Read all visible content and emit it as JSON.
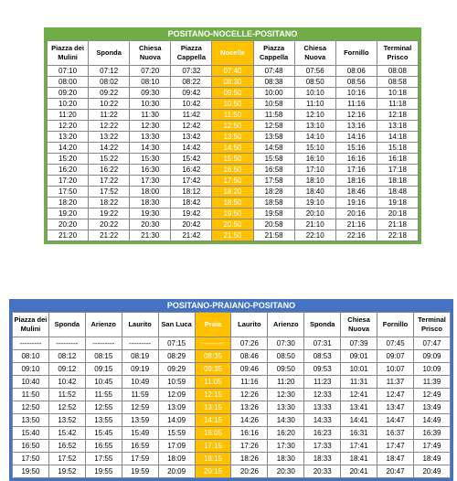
{
  "tables": [
    {
      "title": "POSITANO-NOCELLE-POSITANO",
      "headers": [
        "Piazza dei Mulini",
        "Sponda",
        "Chiesa Nuova",
        "Piazza Cappella",
        "Nocelle",
        "Piazza Cappella",
        "Chiesa Nuova",
        "Fornillo",
        "Terminal Prisco"
      ],
      "rows": [
        [
          "07:10",
          "07:12",
          "07:20",
          "07:32",
          "07:40",
          "07:48",
          "07:56",
          "08:06",
          "08:08"
        ],
        [
          "08:00",
          "08:02",
          "08:10",
          "08:22",
          "08:30",
          "08:38",
          "08:50",
          "08:56",
          "08:58"
        ],
        [
          "09:20",
          "09:22",
          "09:30",
          "09:42",
          "09:50",
          "10:00",
          "10:10",
          "10:16",
          "10:18"
        ],
        [
          "10:20",
          "10:22",
          "10:30",
          "10:42",
          "10:50",
          "10:58",
          "11:10",
          "11:16",
          "11:18"
        ],
        [
          "11:20",
          "11:22",
          "11:30",
          "11:42",
          "11:50",
          "11:58",
          "12:10",
          "12:16",
          "12:18"
        ],
        [
          "12:20",
          "12:22",
          "12:30",
          "12:42",
          "12:50",
          "12:58",
          "13:10",
          "13:16",
          "13:18"
        ],
        [
          "13:20",
          "13:22",
          "13:30",
          "13:42",
          "13:50",
          "13:58",
          "14:10",
          "14:16",
          "14:18"
        ],
        [
          "14:20",
          "14:22",
          "14:30",
          "14:42",
          "14:50",
          "14:58",
          "15:10",
          "15:16",
          "15:18"
        ],
        [
          "15:20",
          "15:22",
          "15:30",
          "15:42",
          "15:50",
          "15:58",
          "16:10",
          "16:16",
          "16:18"
        ],
        [
          "16:20",
          "16:22",
          "16:30",
          "16:42",
          "16:50",
          "16:58",
          "17:10",
          "17:16",
          "17:18"
        ],
        [
          "17:20",
          "17:22",
          "17:30",
          "17:42",
          "17:50",
          "17:58",
          "18:10",
          "18:16",
          "18:18"
        ],
        [
          "17:50",
          "17:52",
          "18:00",
          "18:12",
          "18:20",
          "18:28",
          "18:40",
          "18:46",
          "18:48"
        ],
        [
          "18:20",
          "18:22",
          "18:30",
          "18:42",
          "18:50",
          "18:58",
          "19:10",
          "19:16",
          "19:18"
        ],
        [
          "19:20",
          "19:22",
          "19:30",
          "19:42",
          "19:50",
          "19:58",
          "20:10",
          "20:16",
          "20:18"
        ],
        [
          "20:20",
          "20:22",
          "20:30",
          "20:42",
          "20:50",
          "20:58",
          "21:10",
          "21:16",
          "21:18"
        ],
        [
          "21:20",
          "21:22",
          "21:30",
          "21:42",
          "21:50",
          "21:58",
          "22:10",
          "22:16",
          "22:18"
        ]
      ]
    },
    {
      "title": "POSITANO-PRAIANO-POSITANO",
      "headers": [
        "Piazza dei Mulini",
        "Sponda",
        "Arienzo",
        "Laurito",
        "San Luca",
        "Praia",
        "Laurito",
        "Arienzo",
        "Sponda",
        "Chiesa Nuova",
        "Fornillo",
        "Terminal Prisco"
      ],
      "rows": [
        [
          "---------",
          "---------",
          "---------",
          "---------",
          "07:15",
          "---------",
          "07:26",
          "07:30",
          "07:31",
          "07:39",
          "07:45",
          "07:47"
        ],
        [
          "08:10",
          "08:12",
          "08:15",
          "08:19",
          "08:29",
          "08:35",
          "08:46",
          "08:50",
          "08:53",
          "09:01",
          "09:07",
          "09:09"
        ],
        [
          "09:10",
          "09:12",
          "09:15",
          "09:19",
          "09:29",
          "09:35",
          "09:46",
          "09:50",
          "09:53",
          "10:01",
          "10:07",
          "10:09"
        ],
        [
          "10:40",
          "10:42",
          "10:45",
          "10:49",
          "10:59",
          "11:05",
          "11:16",
          "11:20",
          "11:23",
          "11:31",
          "11:37",
          "11:39"
        ],
        [
          "11:50",
          "11:52",
          "11:55",
          "11:59",
          "12:09",
          "12:15",
          "12:26",
          "12:30",
          "12:33",
          "12:41",
          "12:47",
          "12:49"
        ],
        [
          "12:50",
          "12:52",
          "12:55",
          "12:59",
          "13:09",
          "13:15",
          "13:26",
          "13:30",
          "13:33",
          "13:41",
          "13:47",
          "13:49"
        ],
        [
          "13:50",
          "13:52",
          "13:55",
          "13:59",
          "14:09",
          "14:15",
          "14:26",
          "14:30",
          "14:33",
          "14:41",
          "14:47",
          "14:49"
        ],
        [
          "15:40",
          "15:42",
          "15:45",
          "15:49",
          "15:59",
          "16:05",
          "16:16",
          "16:20",
          "16:23",
          "16:31",
          "16:37",
          "16:39"
        ],
        [
          "16:50",
          "16:52",
          "16:55",
          "16:59",
          "17:09",
          "17:15",
          "17:26",
          "17:30",
          "17:33",
          "17:41",
          "17:47",
          "17:49"
        ],
        [
          "17:50",
          "17:52",
          "17:55",
          "17:59",
          "18:09",
          "18:15",
          "18:26",
          "18:30",
          "18:33",
          "18:41",
          "18:47",
          "18:49"
        ],
        [
          "19:50",
          "19:52",
          "19:55",
          "19:59",
          "20:09",
          "20:15",
          "20:26",
          "20:30",
          "20:33",
          "20:41",
          "20:47",
          "20:49"
        ]
      ]
    }
  ]
}
